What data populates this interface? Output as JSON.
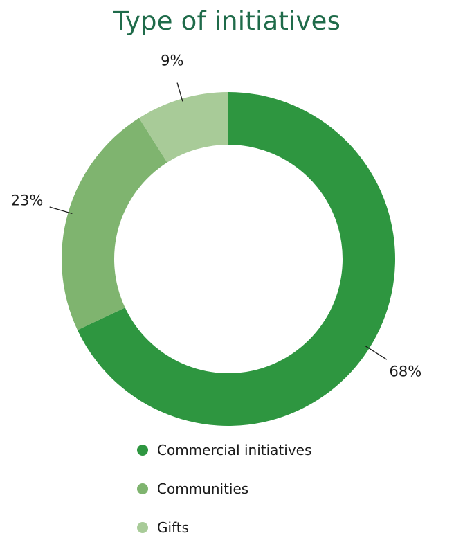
{
  "chart_data": {
    "type": "pie",
    "title": "Type of initiatives",
    "categories": [
      "Commercial initiatives",
      "Communities",
      "Gifts"
    ],
    "values": [
      68,
      23,
      9
    ],
    "value_labels": [
      "68%",
      "23%",
      "9%"
    ],
    "colors": [
      "#2e9640",
      "#7fb46f",
      "#a8cb98"
    ],
    "donut": true,
    "legend_position": "bottom"
  }
}
